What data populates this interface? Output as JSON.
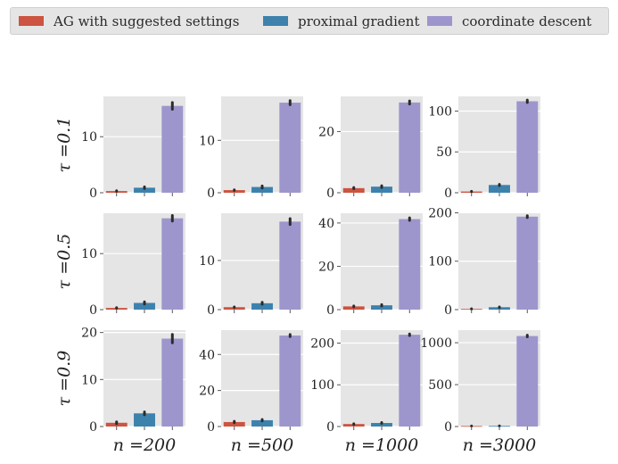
{
  "colors": {
    "series": [
      "#cc5440",
      "#3d82ad",
      "#9d96cd"
    ],
    "panel_bg": "#e5e5e5",
    "grid": "#ffffff",
    "tick": "#555555",
    "text": "#222222",
    "errorbar": "#2b2b2b"
  },
  "chart_data": {
    "type": "bar",
    "layout": "3x4 grid of bar panels",
    "legend": {
      "placement": "top",
      "entries": [
        "AG with suggested settings",
        "proximal gradient",
        "coordinate descent"
      ]
    },
    "row_labels": [
      "τ =0.1",
      "τ =0.5",
      "τ =0.9"
    ],
    "col_labels": [
      "n =200",
      "n =500",
      "n =1000",
      "n =3000"
    ],
    "series_names": [
      "AG with suggested settings",
      "proximal gradient",
      "coordinate descent"
    ],
    "panels": [
      [
        {
          "ylim": [
            0,
            17.2
          ],
          "ticks": [
            0,
            10
          ],
          "values": [
            0.3,
            0.9,
            15.5
          ],
          "err": [
            0.05,
            0.15,
            0.6
          ]
        },
        {
          "ylim": [
            0,
            18.4
          ],
          "ticks": [
            0,
            10
          ],
          "values": [
            0.5,
            1.1,
            17.2
          ],
          "err": [
            0.05,
            0.2,
            0.4
          ]
        },
        {
          "ylim": [
            0,
            31.5
          ],
          "ticks": [
            0,
            20
          ],
          "values": [
            1.5,
            2.0,
            29.5
          ],
          "err": [
            0.2,
            0.3,
            0.5
          ]
        },
        {
          "ylim": [
            0,
            118
          ],
          "ticks": [
            0,
            50,
            100
          ],
          "values": [
            1.5,
            9.5,
            112
          ],
          "err": [
            0.3,
            0.8,
            1.5
          ]
        }
      ],
      [
        {
          "ylim": [
            0,
            17.2
          ],
          "ticks": [
            0,
            10
          ],
          "values": [
            0.3,
            1.2,
            16.3
          ],
          "err": [
            0.05,
            0.2,
            0.5
          ]
        },
        {
          "ylim": [
            0,
            19.6
          ],
          "ticks": [
            0,
            10
          ],
          "values": [
            0.5,
            1.3,
            17.9
          ],
          "err": [
            0.05,
            0.2,
            0.6
          ]
        },
        {
          "ylim": [
            0,
            44.5
          ],
          "ticks": [
            0,
            20,
            40
          ],
          "values": [
            1.5,
            2.0,
            41.8
          ],
          "err": [
            0.2,
            0.3,
            0.6
          ]
        },
        {
          "ylim": [
            0,
            199
          ],
          "ticks": [
            0,
            100,
            200
          ],
          "values": [
            1.5,
            5.0,
            192
          ],
          "err": [
            0.3,
            0.6,
            2.0
          ]
        }
      ],
      [
        {
          "ylim": [
            0,
            20.5
          ],
          "ticks": [
            0,
            10,
            20
          ],
          "values": [
            0.8,
            2.8,
            18.7
          ],
          "err": [
            0.2,
            0.3,
            0.9
          ]
        },
        {
          "ylim": [
            0,
            53.5
          ],
          "ticks": [
            0,
            20,
            40
          ],
          "values": [
            2.5,
            3.5,
            50.5
          ],
          "err": [
            0.4,
            0.4,
            0.6
          ]
        },
        {
          "ylim": [
            0,
            231
          ],
          "ticks": [
            0,
            100,
            200
          ],
          "values": [
            6,
            8.5,
            220
          ],
          "err": [
            0.8,
            1.0,
            2.0
          ]
        },
        {
          "ylim": [
            0,
            1150
          ],
          "ticks": [
            0,
            500,
            1000
          ],
          "values": [
            6,
            7,
            1080
          ],
          "err": [
            1,
            1,
            10
          ]
        }
      ]
    ]
  }
}
